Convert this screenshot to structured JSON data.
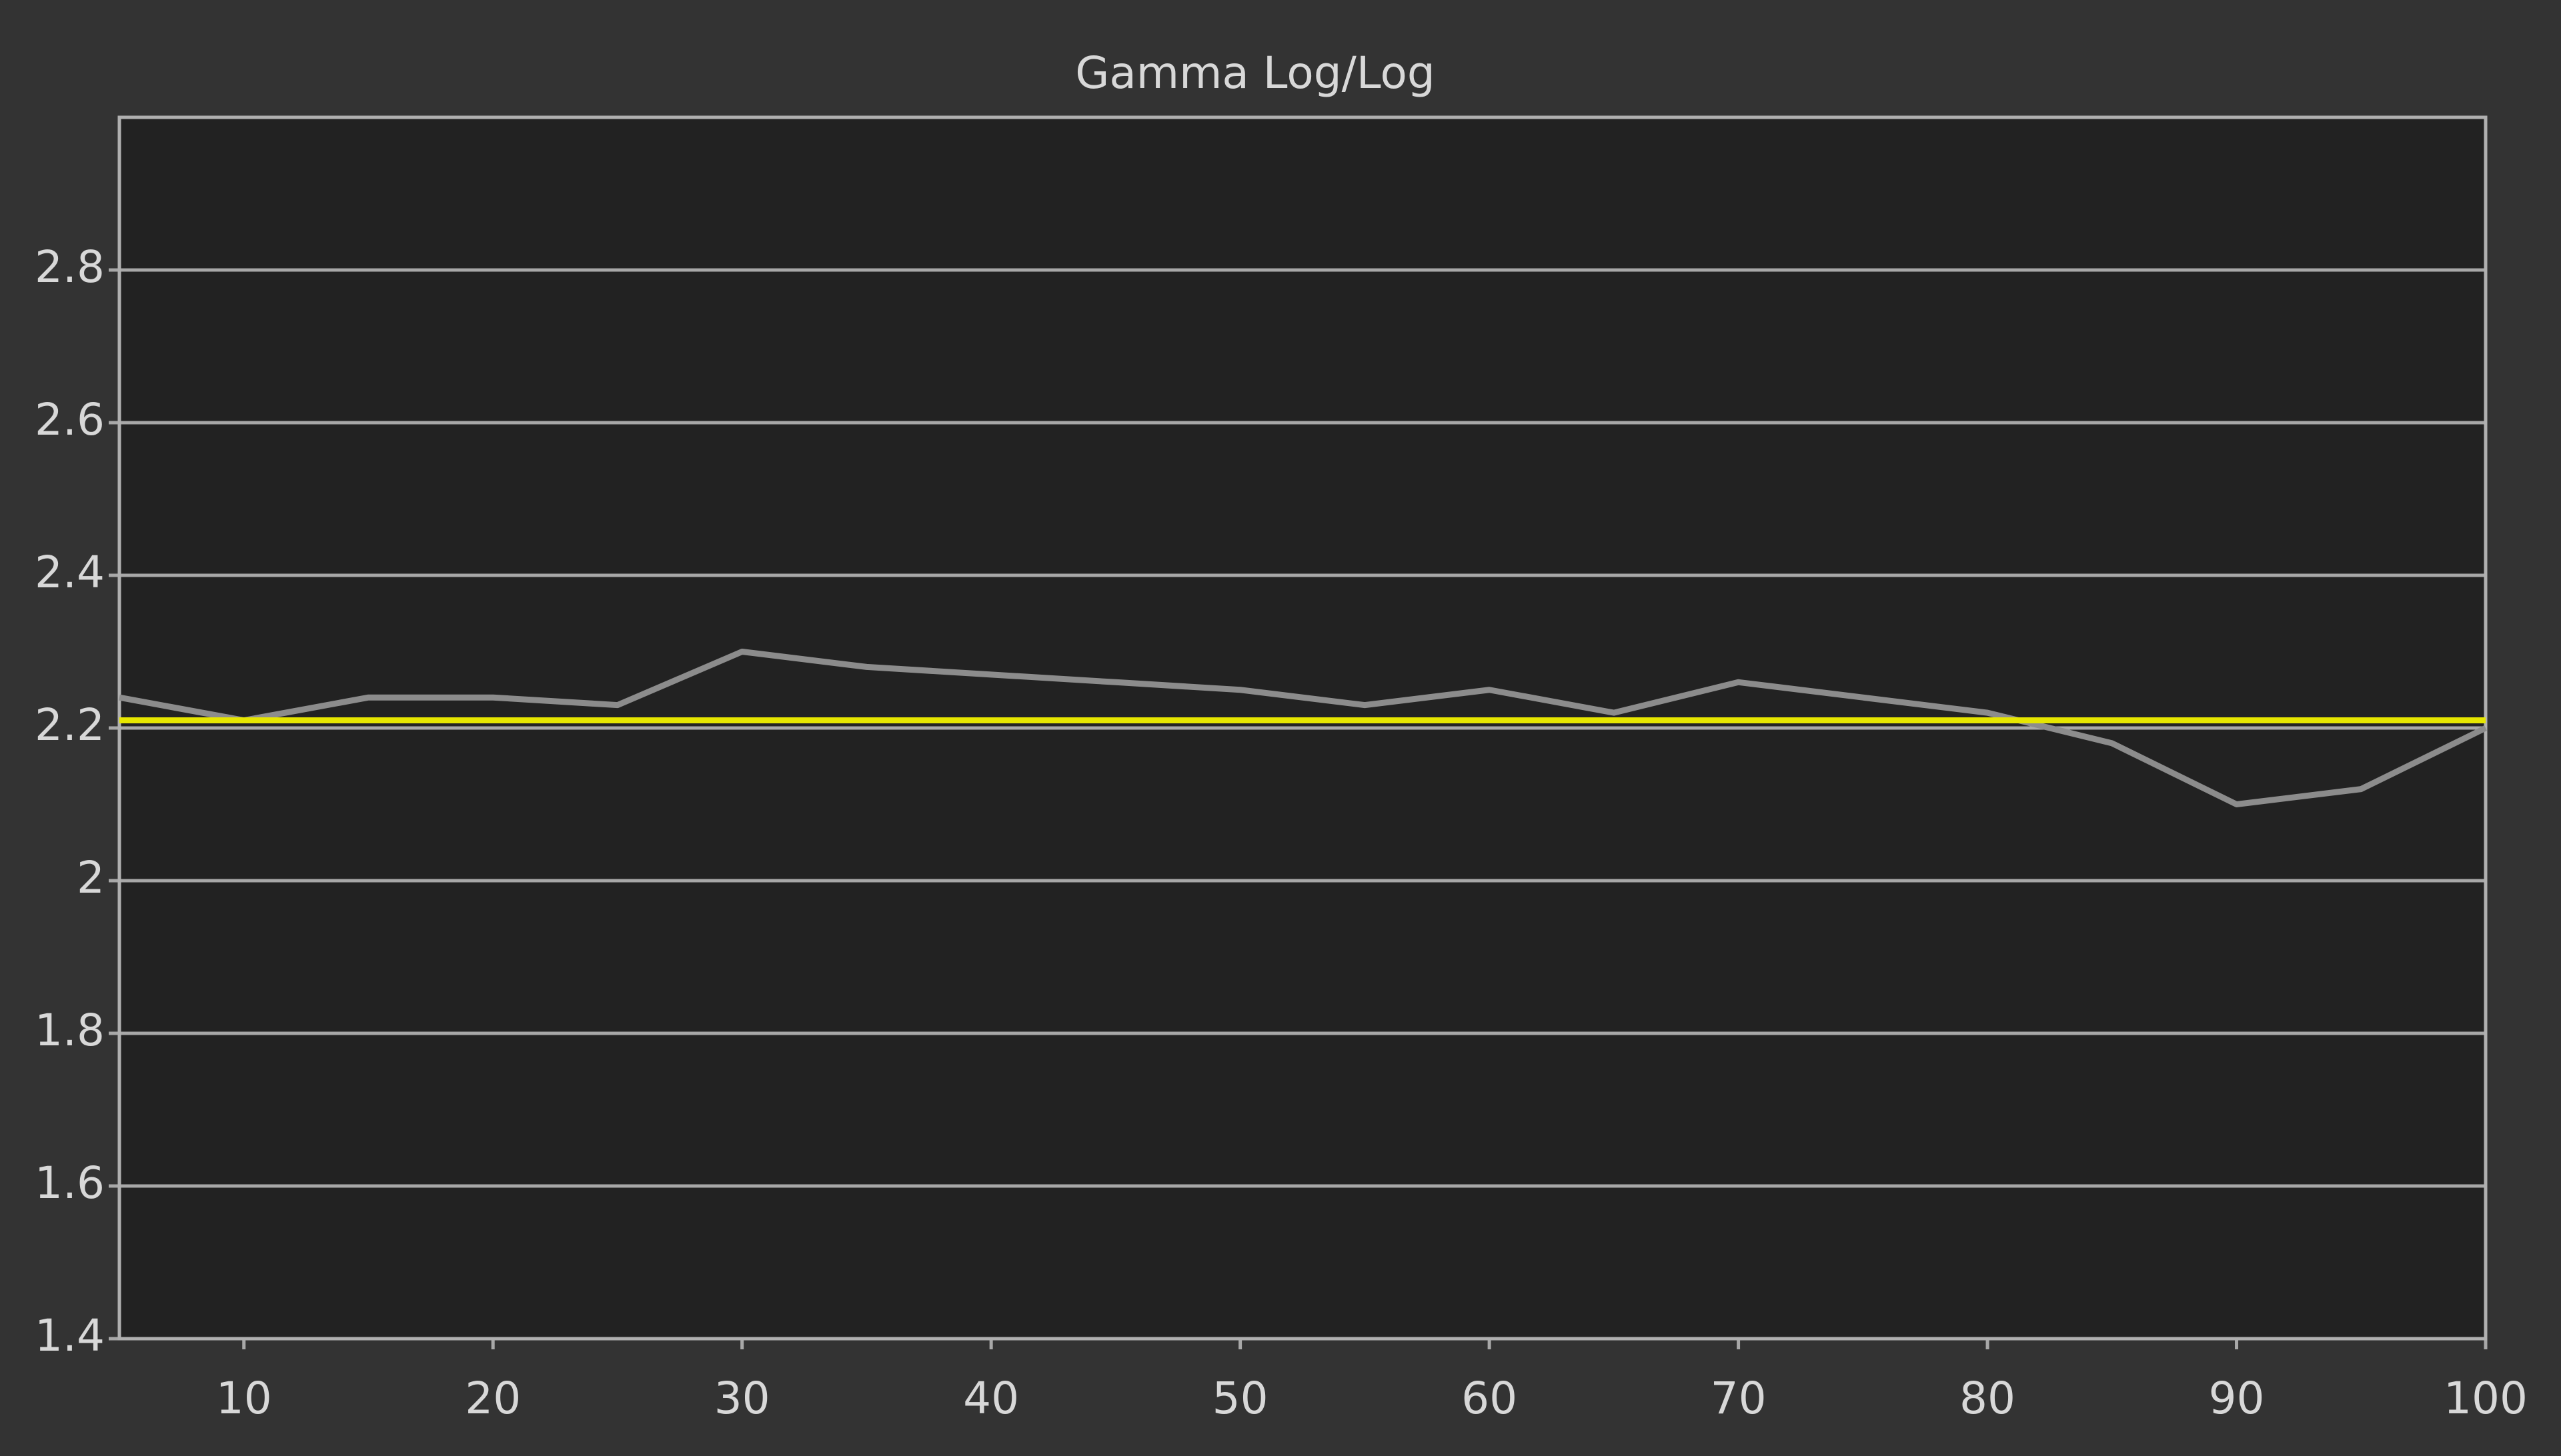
{
  "chart_data": {
    "type": "line",
    "title": "Gamma Log/Log",
    "x": [
      5,
      10,
      15,
      20,
      25,
      30,
      35,
      40,
      45,
      50,
      55,
      60,
      65,
      70,
      75,
      80,
      85,
      90,
      95,
      100
    ],
    "series": [
      {
        "color": "#8c8c8c",
        "values": [
          2.24,
          2.21,
          2.24,
          2.24,
          2.23,
          2.3,
          2.28,
          2.27,
          2.26,
          2.25,
          2.23,
          2.25,
          2.22,
          2.26,
          2.24,
          2.22,
          2.18,
          2.1,
          2.12,
          2.2
        ]
      },
      {
        "color": "#e6e600",
        "values": [
          2.21,
          2.21,
          2.21,
          2.21,
          2.21,
          2.21,
          2.21,
          2.21,
          2.21,
          2.21,
          2.21,
          2.21,
          2.21,
          2.21,
          2.21,
          2.21,
          2.21,
          2.21,
          2.21,
          2.21
        ]
      }
    ],
    "xlim": [
      5,
      100
    ],
    "xticks": [
      10,
      20,
      30,
      40,
      50,
      60,
      70,
      80,
      90,
      100
    ],
    "ylim": [
      1.4,
      3.0
    ],
    "yticks": [
      1.4,
      1.6,
      1.8,
      2,
      2.2,
      2.4,
      2.6,
      2.8
    ],
    "grid": true
  }
}
